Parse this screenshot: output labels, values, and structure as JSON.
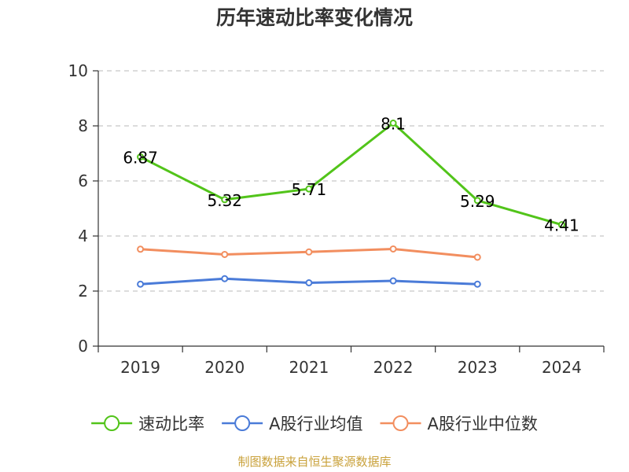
{
  "chart_data": {
    "type": "line",
    "title": "历年速动比率变化情况",
    "categories": [
      "2019",
      "2020",
      "2021",
      "2022",
      "2023",
      "2024"
    ],
    "ylim": [
      0,
      10
    ],
    "yticks": [
      0,
      2,
      4,
      6,
      8,
      10
    ],
    "grid": true,
    "legend_position": "bottom",
    "series": [
      {
        "name": "速动比率",
        "color": "#52c41a",
        "values": [
          6.87,
          5.32,
          5.71,
          8.1,
          5.29,
          4.41
        ],
        "labels": [
          "6.87",
          "5.32",
          "5.71",
          "8.1",
          "5.29",
          "4.41"
        ],
        "show_labels": true
      },
      {
        "name": "A股行业均值",
        "color": "#4a7bd8",
        "values": [
          2.25,
          2.45,
          2.3,
          2.37,
          2.25,
          null
        ],
        "show_labels": false
      },
      {
        "name": "A股行业中位数",
        "color": "#f28e5f",
        "values": [
          3.52,
          3.33,
          3.42,
          3.53,
          3.23,
          null
        ],
        "show_labels": false
      }
    ]
  },
  "source": "制图数据来自恒生聚源数据库"
}
